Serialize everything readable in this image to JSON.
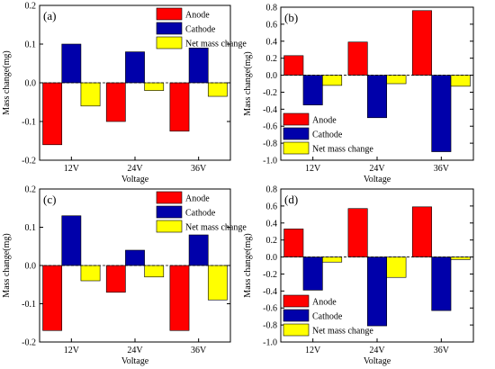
{
  "colors": {
    "anode": "#ff0000",
    "cathode": "#0000aa",
    "net": "#ffff00"
  },
  "chart_data": [
    {
      "type": "bar",
      "panel_label": "(a)",
      "categories": [
        "12V",
        "24V",
        "36V"
      ],
      "xlabel": "Voltage",
      "ylabel": "Mass change(mg)",
      "ylim": [
        -0.2,
        0.2
      ],
      "yticks": [
        "-0.2",
        "-0.1",
        "0.0",
        "0.1",
        "0.2"
      ],
      "ytick_values": [
        -0.2,
        -0.1,
        0.0,
        0.1,
        0.2
      ],
      "legend_position": "top-right",
      "series": [
        {
          "name": "Anode",
          "values": [
            -0.16,
            -0.1,
            -0.125
          ]
        },
        {
          "name": "Cathode",
          "values": [
            0.1,
            0.08,
            0.09
          ]
        },
        {
          "name": "Net mass change",
          "values": [
            -0.06,
            -0.02,
            -0.035
          ]
        }
      ]
    },
    {
      "type": "bar",
      "panel_label": "(b)",
      "categories": [
        "12V",
        "24V",
        "36V"
      ],
      "xlabel": "Voltage",
      "ylabel": "Mass change(mg)",
      "ylim": [
        -1.0,
        0.8
      ],
      "yticks": [
        "-1.0",
        "-0.8",
        "-0.6",
        "-0.4",
        "-0.2",
        "0.0",
        "0.2",
        "0.4",
        "0.6",
        "0.8"
      ],
      "ytick_values": [
        -1.0,
        -0.8,
        -0.6,
        -0.4,
        -0.2,
        0.0,
        0.2,
        0.4,
        0.6,
        0.8
      ],
      "legend_position": "bottom-left",
      "series": [
        {
          "name": "Anode",
          "values": [
            0.23,
            0.39,
            0.76
          ]
        },
        {
          "name": "Cathode",
          "values": [
            -0.35,
            -0.5,
            -0.9
          ]
        },
        {
          "name": "Net mass change",
          "values": [
            -0.12,
            -0.1,
            -0.13
          ]
        }
      ]
    },
    {
      "type": "bar",
      "panel_label": "(c)",
      "categories": [
        "12V",
        "24V",
        "36V"
      ],
      "xlabel": "Voltage",
      "ylabel": "Mass change(mg)",
      "ylim": [
        -0.2,
        0.2
      ],
      "yticks": [
        "-0.2",
        "-0.1",
        "0.0",
        "0.1",
        "0.2"
      ],
      "ytick_values": [
        -0.2,
        -0.1,
        0.0,
        0.1,
        0.2
      ],
      "legend_position": "top-right",
      "series": [
        {
          "name": "Anode",
          "values": [
            -0.17,
            -0.07,
            -0.17
          ]
        },
        {
          "name": "Cathode",
          "values": [
            0.13,
            0.04,
            0.08
          ]
        },
        {
          "name": "Net mass change",
          "values": [
            -0.04,
            -0.03,
            -0.09
          ]
        }
      ]
    },
    {
      "type": "bar",
      "panel_label": "(d)",
      "categories": [
        "12V",
        "24V",
        "36V"
      ],
      "xlabel": "Voltage",
      "ylabel": "Mass change(mg)",
      "ylim": [
        -1.0,
        0.8
      ],
      "yticks": [
        "-1.0",
        "-0.8",
        "-0.6",
        "-0.4",
        "-0.2",
        "0.0",
        "0.2",
        "0.4",
        "0.6",
        "0.8"
      ],
      "ytick_values": [
        -1.0,
        -0.8,
        -0.6,
        -0.4,
        -0.2,
        0.0,
        0.2,
        0.4,
        0.6,
        0.8
      ],
      "legend_position": "bottom-left",
      "series": [
        {
          "name": "Anode",
          "values": [
            0.33,
            0.57,
            0.59
          ]
        },
        {
          "name": "Cathode",
          "values": [
            -0.39,
            -0.81,
            -0.63
          ]
        },
        {
          "name": "Net mass change",
          "values": [
            -0.06,
            -0.24,
            -0.03
          ]
        }
      ]
    }
  ]
}
